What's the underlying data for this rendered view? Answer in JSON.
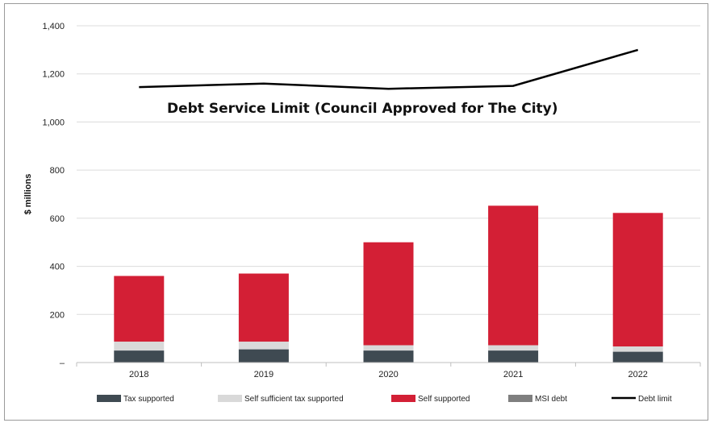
{
  "chart_data": {
    "type": "bar",
    "stacked": true,
    "ylabel": "$ millions",
    "ylim": [
      0,
      1400
    ],
    "yticks": [
      0,
      200,
      400,
      600,
      800,
      1000,
      1200,
      1400
    ],
    "ytick_labels": [
      "–",
      "200",
      "400",
      "600",
      "800",
      "1,000",
      "1,200",
      "1,400"
    ],
    "categories": [
      "2018",
      "2019",
      "2020",
      "2021",
      "2022"
    ],
    "series": [
      {
        "name": "Tax supported",
        "color": "#3f4a52",
        "values": [
          50,
          55,
          50,
          50,
          45
        ]
      },
      {
        "name": "Self sufficient tax supported",
        "color": "#d9d9d9",
        "values": [
          37,
          32,
          22,
          22,
          22
        ]
      },
      {
        "name": "Self supported",
        "color": "#d31f35",
        "values": [
          273,
          283,
          428,
          580,
          555
        ]
      },
      {
        "name": "MSI debt",
        "color": "#7f7f7f",
        "values": [
          0,
          0,
          0,
          0,
          0
        ]
      }
    ],
    "line": {
      "name": "Debt limit",
      "color": "#000000",
      "values": [
        1145,
        1160,
        1138,
        1150,
        1300
      ]
    },
    "annotation": "Debt  Service Limit (Council Approved for The City)",
    "grid": true,
    "legend_position": "bottom"
  }
}
